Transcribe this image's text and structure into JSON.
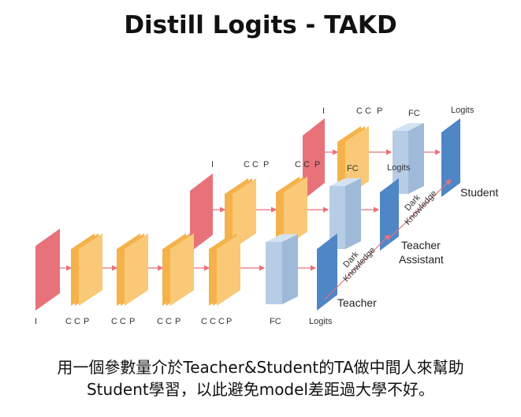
{
  "title": "Distill Logits - TAKD",
  "labels": {
    "i": "I",
    "cc": "C C",
    "ccc": "C C C",
    "p": "P",
    "fc": "FC",
    "logits": "Logits",
    "teacher": "Teacher",
    "teacher_assistant_line1": "Teacher",
    "teacher_assistant_line2": "Assistant",
    "student": "Student",
    "dark": "Dark",
    "knowledge": "Knowledge"
  },
  "caption": {
    "line1": "用一個參數量介於Teacher&Student的TA做中間人來幫助",
    "line2": "Student學習，以此避免model差距過大學不好。"
  },
  "colors": {
    "input": "#e8727a",
    "conv": "#f5b24a",
    "conv_front": "#f9c978",
    "fc": "#b7cde6",
    "logits": "#4f86c6",
    "arrow": "#e8727a"
  }
}
